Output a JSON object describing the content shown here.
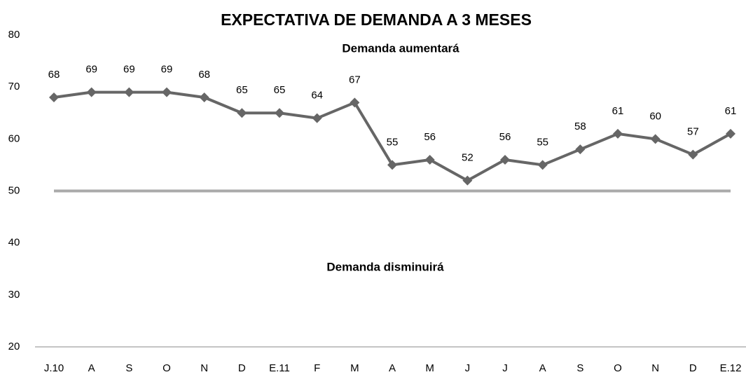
{
  "chart_data": {
    "type": "line",
    "title": "EXPECTATIVA DE DEMANDA A 3 MESES",
    "annotations": [
      "Demanda aumentará",
      "Demanda disminuirá"
    ],
    "categories": [
      "J.10",
      "A",
      "S",
      "O",
      "N",
      "D",
      "E.11",
      "F",
      "M",
      "A",
      "M",
      "J",
      "J",
      "A",
      "S",
      "O",
      "N",
      "D",
      "E.12"
    ],
    "series": [
      {
        "color": "#666666",
        "values": [
          68,
          69,
          69,
          69,
          68,
          65,
          65,
          64,
          67,
          55,
          56,
          52,
          56,
          55,
          58,
          61,
          60,
          57,
          61
        ]
      }
    ],
    "reference_line": {
      "value": 50,
      "color": "#aaaaaa"
    },
    "ylim": [
      20,
      80
    ],
    "yticks": [
      20,
      30,
      40,
      50,
      60,
      70,
      80
    ],
    "grid": false
  }
}
